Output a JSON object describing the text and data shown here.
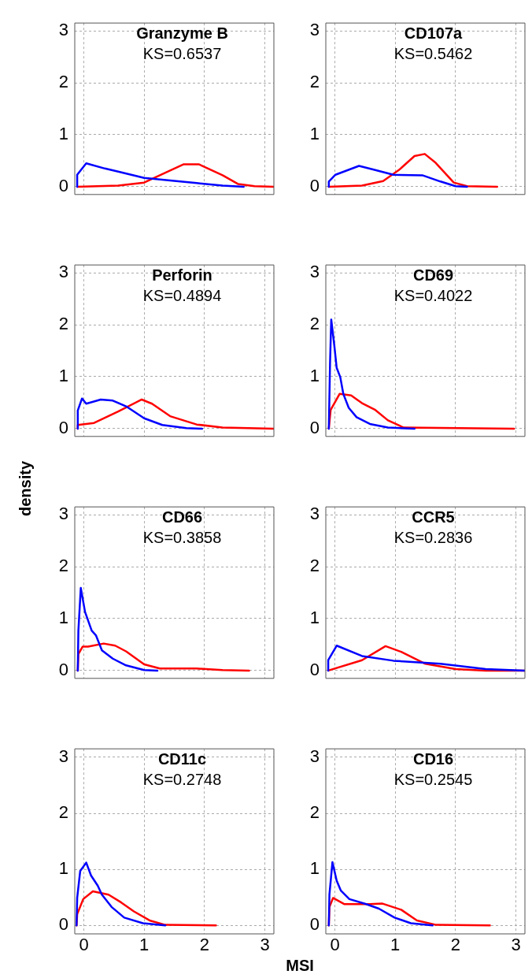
{
  "chart_data": [
    {
      "type": "line",
      "title": "Granzyme B",
      "subtitle": "KS=0.6537",
      "xlim": [
        -0.15,
        3.15
      ],
      "ylim": [
        -0.15,
        3.15
      ],
      "xticks": [
        0,
        1,
        2,
        3
      ],
      "yticks": [
        0,
        1,
        2,
        3
      ],
      "grid": true,
      "tick_labels": "y",
      "series": [
        {
          "color": "#0000ff",
          "x": [
            -0.11,
            -0.11,
            0.04,
            0.35,
            0.57,
            1.0,
            1.43,
            1.87,
            2.3,
            2.65
          ],
          "values": [
            0,
            0.23,
            0.45,
            0.35,
            0.29,
            0.17,
            0.12,
            0.07,
            0.02,
            0
          ]
        },
        {
          "color": "#ff0000",
          "x": [
            -0.11,
            0.57,
            1.0,
            1.43,
            1.65,
            1.91,
            2.3,
            2.56,
            2.83,
            3.15
          ],
          "values": [
            0,
            0.02,
            0.08,
            0.31,
            0.43,
            0.43,
            0.22,
            0.05,
            0.01,
            0
          ]
        }
      ]
    },
    {
      "type": "line",
      "title": "CD107a",
      "subtitle": "KS=0.5462",
      "xlim": [
        -0.15,
        3.15
      ],
      "ylim": [
        -0.15,
        3.15
      ],
      "xticks": [
        0,
        1,
        2,
        3
      ],
      "yticks": [
        0,
        1,
        2,
        3
      ],
      "grid": true,
      "tick_labels": "y",
      "series": [
        {
          "color": "#0000ff",
          "x": [
            -0.1,
            -0.1,
            0.01,
            0.4,
            0.67,
            0.97,
            1.45,
            1.75,
            2.0,
            2.19
          ],
          "values": [
            0,
            0.1,
            0.23,
            0.4,
            0.32,
            0.23,
            0.22,
            0.1,
            0.01,
            0
          ]
        },
        {
          "color": "#ff0000",
          "x": [
            -0.1,
            0.45,
            0.8,
            1.06,
            1.32,
            1.49,
            1.67,
            1.97,
            2.19,
            2.69
          ],
          "values": [
            0,
            0.02,
            0.11,
            0.32,
            0.59,
            0.63,
            0.46,
            0.08,
            0.01,
            0
          ]
        }
      ]
    },
    {
      "type": "line",
      "title": "Perforin",
      "subtitle": "KS=0.4894",
      "xlim": [
        -0.15,
        3.15
      ],
      "ylim": [
        -0.15,
        3.15
      ],
      "xticks": [
        0,
        1,
        2,
        3
      ],
      "yticks": [
        0,
        1,
        2,
        3
      ],
      "grid": true,
      "tick_labels": "y",
      "series": [
        {
          "color": "#0000ff",
          "x": [
            -0.1,
            -0.1,
            -0.03,
            0.04,
            0.28,
            0.48,
            0.7,
            1.0,
            1.3,
            1.7,
            1.96
          ],
          "values": [
            0,
            0.35,
            0.58,
            0.48,
            0.56,
            0.54,
            0.43,
            0.2,
            0.07,
            0.01,
            0
          ]
        },
        {
          "color": "#ff0000",
          "x": [
            -0.1,
            -0.1,
            0.17,
            0.57,
            0.96,
            1.13,
            1.43,
            1.87,
            2.3,
            3.15
          ],
          "values": [
            0,
            0.07,
            0.11,
            0.33,
            0.56,
            0.48,
            0.24,
            0.08,
            0.02,
            0
          ]
        }
      ]
    },
    {
      "type": "line",
      "title": "CD69",
      "subtitle": "KS=0.4022",
      "xlim": [
        -0.15,
        3.15
      ],
      "ylim": [
        -0.15,
        3.15
      ],
      "xticks": [
        0,
        1,
        2,
        3
      ],
      "yticks": [
        0,
        1,
        2,
        3
      ],
      "grid": true,
      "tick_labels": "y",
      "series": [
        {
          "color": "#0000ff",
          "x": [
            -0.1,
            -0.08,
            -0.06,
            -0.01,
            0.03,
            0.09,
            0.14,
            0.23,
            0.36,
            0.58,
            0.88,
            1.32
          ],
          "values": [
            0,
            1.25,
            2.1,
            1.61,
            1.17,
            0.99,
            0.67,
            0.4,
            0.22,
            0.09,
            0.02,
            0
          ]
        },
        {
          "color": "#ff0000",
          "x": [
            -0.1,
            -0.07,
            0.08,
            0.27,
            0.45,
            0.67,
            0.88,
            1.14,
            2.97
          ],
          "values": [
            0,
            0.36,
            0.67,
            0.64,
            0.49,
            0.36,
            0.16,
            0.02,
            0
          ]
        }
      ]
    },
    {
      "type": "line",
      "title": "CD66",
      "subtitle": "KS=0.3858",
      "ylabel": "density",
      "xlim": [
        -0.15,
        3.15
      ],
      "ylim": [
        -0.15,
        3.15
      ],
      "xticks": [
        0,
        1,
        2,
        3
      ],
      "yticks": [
        0,
        1,
        2,
        3
      ],
      "grid": true,
      "tick_labels": "y",
      "series": [
        {
          "color": "#0000ff",
          "x": [
            -0.1,
            -0.09,
            -0.05,
            0.02,
            0.13,
            0.2,
            0.3,
            0.48,
            0.7,
            1.0,
            1.22
          ],
          "values": [
            0,
            0.77,
            1.59,
            1.13,
            0.77,
            0.68,
            0.39,
            0.23,
            0.1,
            0.01,
            0
          ]
        },
        {
          "color": "#ff0000",
          "x": [
            -0.1,
            -0.09,
            -0.02,
            0.07,
            0.33,
            0.52,
            0.7,
            1.0,
            1.26,
            1.87,
            2.3,
            2.74
          ],
          "values": [
            0,
            0.32,
            0.46,
            0.46,
            0.52,
            0.48,
            0.37,
            0.12,
            0.04,
            0.04,
            0.01,
            0
          ]
        }
      ]
    },
    {
      "type": "line",
      "title": "CCR5",
      "subtitle": "KS=0.2836",
      "xlim": [
        -0.15,
        3.15
      ],
      "ylim": [
        -0.15,
        3.15
      ],
      "xticks": [
        0,
        1,
        2,
        3
      ],
      "yticks": [
        0,
        1,
        2,
        3
      ],
      "grid": true,
      "tick_labels": "y",
      "series": [
        {
          "color": "#0000ff",
          "x": [
            -0.11,
            -0.11,
            0.03,
            0.45,
            0.97,
            1.75,
            2.5,
            3.15
          ],
          "values": [
            0,
            0.2,
            0.48,
            0.28,
            0.19,
            0.13,
            0.03,
            0
          ]
        },
        {
          "color": "#ff0000",
          "x": [
            -0.11,
            0.45,
            0.84,
            1.1,
            1.5,
            2.0,
            2.5,
            3.15
          ],
          "values": [
            0,
            0.2,
            0.47,
            0.36,
            0.13,
            0.03,
            0,
            0
          ]
        }
      ]
    },
    {
      "type": "line",
      "title": "CD11c",
      "subtitle": "KS=0.2748",
      "xlabel": "MSI",
      "xlim": [
        -0.15,
        3.15
      ],
      "ylim": [
        -0.15,
        3.15
      ],
      "xticks": [
        0,
        1,
        2,
        3
      ],
      "yticks": [
        0,
        1,
        2,
        3
      ],
      "grid": true,
      "series": [
        {
          "color": "#0000ff",
          "x": [
            -0.12,
            -0.11,
            -0.06,
            0.04,
            0.12,
            0.23,
            0.3,
            0.46,
            0.67,
            0.98,
            1.35
          ],
          "values": [
            0,
            0.49,
            0.97,
            1.12,
            0.89,
            0.71,
            0.55,
            0.33,
            0.14,
            0.04,
            0
          ]
        },
        {
          "color": "#ff0000",
          "x": [
            -0.12,
            -0.11,
            -0.01,
            0.15,
            0.41,
            0.62,
            0.83,
            1.09,
            1.35,
            2.19
          ],
          "values": [
            0,
            0.2,
            0.47,
            0.61,
            0.55,
            0.41,
            0.25,
            0.09,
            0.01,
            0
          ]
        }
      ]
    },
    {
      "type": "line",
      "title": "CD16",
      "subtitle": "KS=0.2545",
      "xlim": [
        -0.15,
        3.15
      ],
      "ylim": [
        -0.15,
        3.15
      ],
      "xticks": [
        0,
        1,
        2,
        3
      ],
      "yticks": [
        0,
        1,
        2,
        3
      ],
      "grid": true,
      "series": [
        {
          "color": "#0000ff",
          "x": [
            -0.1,
            -0.09,
            -0.04,
            0.03,
            0.1,
            0.24,
            0.52,
            0.73,
            0.99,
            1.26,
            1.62
          ],
          "values": [
            0,
            0.55,
            1.13,
            0.8,
            0.62,
            0.47,
            0.38,
            0.3,
            0.14,
            0.04,
            0
          ]
        },
        {
          "color": "#ff0000",
          "x": [
            -0.1,
            -0.09,
            -0.03,
            0.16,
            0.58,
            0.79,
            1.1,
            1.36,
            1.68,
            2.57
          ],
          "values": [
            0,
            0.33,
            0.49,
            0.38,
            0.38,
            0.39,
            0.28,
            0.09,
            0.01,
            0
          ]
        }
      ]
    }
  ]
}
